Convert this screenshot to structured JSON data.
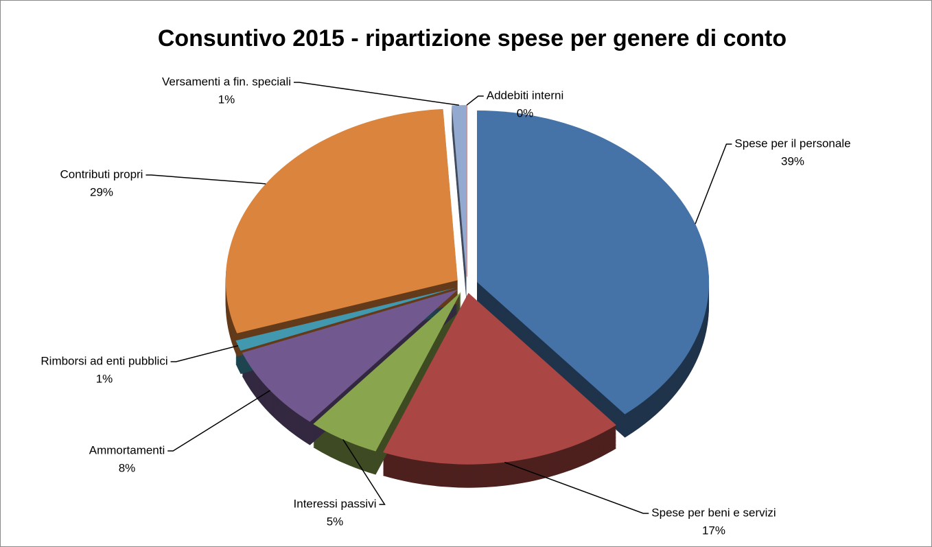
{
  "chart_data": {
    "type": "pie",
    "title": "Consuntivo 2015 - ripartizione spese per genere di conto",
    "categories": [
      "Spese per il personale",
      "Spese per beni e servizi",
      "Interessi passivi",
      "Ammortamenti",
      "Rimborsi ad enti pubblici",
      "Contributi propri",
      "Versamenti a fin. speciali",
      "Addebiti interni"
    ],
    "values": [
      39,
      17,
      5,
      8,
      1,
      29,
      1,
      0
    ],
    "value_labels": [
      "39%",
      "17%",
      "5%",
      "8%",
      "1%",
      "29%",
      "1%",
      "0%"
    ],
    "colors": [
      "#4572a7",
      "#aa4643",
      "#89a54e",
      "#71588f",
      "#4198af",
      "#db843d",
      "#93a9cf",
      "#d19392"
    ]
  }
}
